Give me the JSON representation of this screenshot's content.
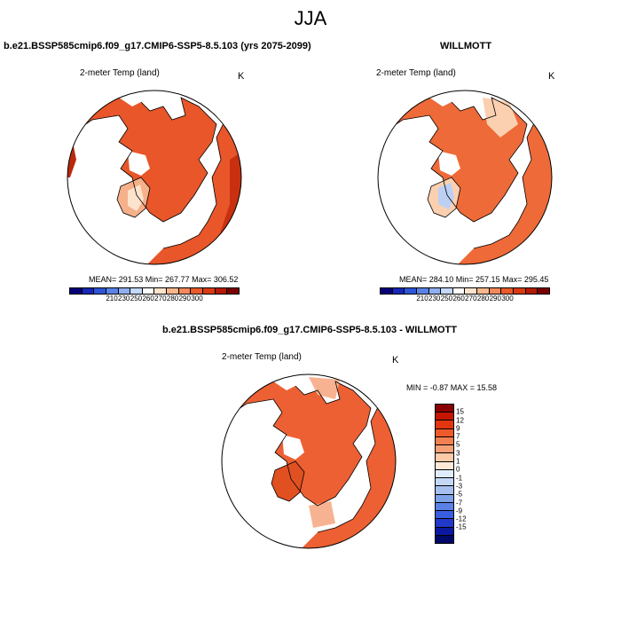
{
  "season": "JJA",
  "panels": {
    "model": {
      "case_title": "b.e21.BSSP585cmip6.f09_g17.CMIP6-SSP5-8.5.103 (yrs 2075-2099)",
      "variable": "2-meter Temp (land)",
      "units": "K",
      "stats": "MEAN= 291.53  Min= 267.77  Max= 306.52"
    },
    "obs": {
      "case_title": "WILLMOTT",
      "variable": "2-meter Temp (land)",
      "units": "K",
      "stats": "MEAN= 284.10  Min= 257.15  Max= 295.45"
    },
    "diff": {
      "case_title": "b.e21.BSSP585cmip6.f09_g17.CMIP6-SSP5-8.5.103 - WILLMOTT",
      "variable": "2-meter Temp (land)",
      "units": "K",
      "stats": "MIN =  -0.87 MAX =  15.58"
    }
  },
  "abs_colorbar": {
    "colors": [
      "#08007a",
      "#1727b8",
      "#2e55d6",
      "#5a82e6",
      "#8fb0f0",
      "#c4d8fa",
      "#ffffff",
      "#fde3cc",
      "#f8b78c",
      "#f2895a",
      "#ea5a2c",
      "#d83a12",
      "#b31b06",
      "#7a0000"
    ],
    "tick_labels": [
      "210",
      "230",
      "250",
      "260",
      "270",
      "280",
      "290",
      "300"
    ]
  },
  "diff_colorbar": {
    "colors": [
      "#8a0000",
      "#c41600",
      "#e33510",
      "#ee5a2a",
      "#f28050",
      "#f6a078",
      "#fbcaa8",
      "#fde8d8",
      "#e0ecfb",
      "#c4d8f6",
      "#a5c0f0",
      "#7ea2ea",
      "#5a82e6",
      "#3a5ee0",
      "#2238c8",
      "#0c18a0",
      "#00086a"
    ],
    "tick_labels": [
      "15",
      "12",
      "9",
      "7",
      "5",
      "3",
      "1",
      "0",
      "-1",
      "-3",
      "-5",
      "-7",
      "-9",
      "-12",
      "-15"
    ]
  },
  "map_colors": {
    "model_land": "#e8562a",
    "model_warm": "#c93010",
    "model_cool": "#f6b08a",
    "obs_land": "#ee6a38",
    "obs_cool": "#bcd0f4",
    "obs_mid": "#fbd0b0",
    "diff_land": "#ec6034",
    "diff_pale": "#f7b391"
  }
}
